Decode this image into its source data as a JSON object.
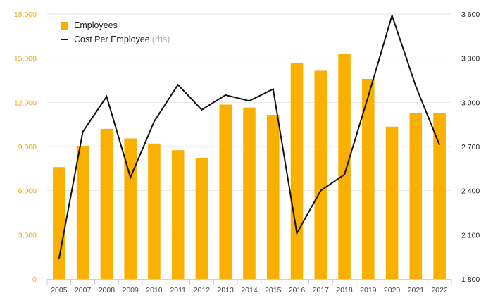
{
  "chart_data": {
    "type": "bar+line",
    "categories": [
      "2005",
      "2007",
      "2008",
      "2009",
      "2010",
      "2011",
      "2012",
      "2013",
      "2014",
      "2015",
      "2016",
      "2017",
      "2018",
      "2019",
      "2020",
      "2021",
      "2022"
    ],
    "series": [
      {
        "name": "Employees",
        "type": "bar",
        "axis": "left",
        "values": [
          7600,
          9050,
          10200,
          9550,
          9200,
          8750,
          8200,
          11850,
          11650,
          11150,
          14700,
          14150,
          15300,
          13600,
          10350,
          11300,
          11250
        ]
      },
      {
        "name": "Cost Per Employee",
        "type": "line",
        "axis": "right",
        "values": [
          1940,
          2800,
          3040,
          2490,
          2870,
          3120,
          2950,
          3050,
          3010,
          3090,
          2110,
          2400,
          2510,
          3040,
          3590,
          3110,
          2710
        ]
      }
    ],
    "left_axis": {
      "ylim": [
        0,
        18000
      ],
      "ticks": [
        0,
        3000,
        6000,
        9000,
        12000,
        15000,
        18000
      ],
      "tick_labels": [
        "0",
        "3,000",
        "6,000",
        "9,000",
        "12,000",
        "15,000",
        "18,000"
      ]
    },
    "right_axis": {
      "ylim": [
        1800,
        3600
      ],
      "ticks": [
        1800,
        2100,
        2400,
        2700,
        3000,
        3300,
        3600
      ],
      "tick_labels": [
        "1 800",
        "2 100",
        "2 400",
        "2 700",
        "3 000",
        "3 300",
        "3 600"
      ]
    },
    "legend": {
      "position": "top-left",
      "rhs_tag": "(rhs)"
    },
    "colors": {
      "bar": "#f9b000",
      "line": "#111111",
      "left_axis_text": "#f2a900",
      "right_axis_text": "#222222",
      "grid": "#e6e6e6"
    }
  }
}
